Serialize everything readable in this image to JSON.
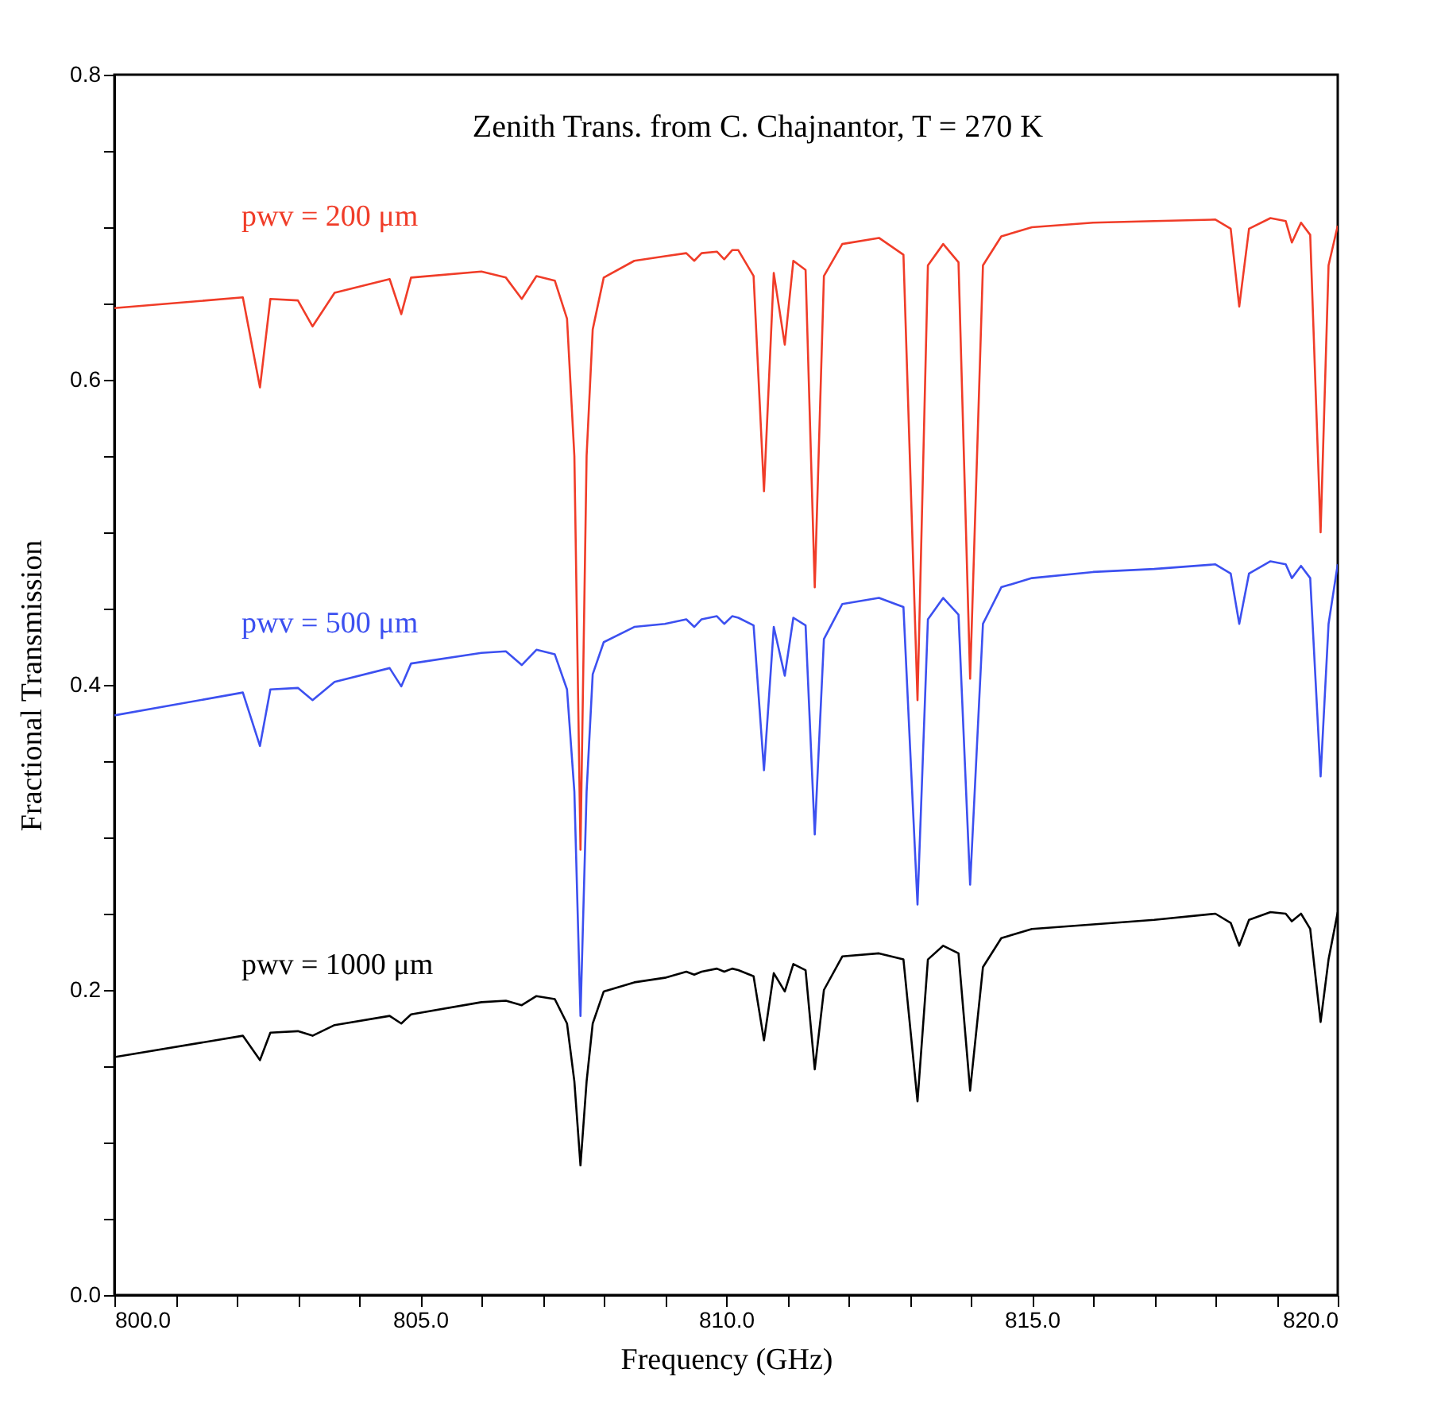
{
  "chart_data": {
    "type": "line",
    "title": "Zenith Trans. from C. Chajnantor, T = 270 K",
    "xlabel": "Frequency (GHz)",
    "ylabel": "Fractional Transmission",
    "x": [
      800,
      802.1,
      802.38,
      802.55,
      803.0,
      803.24,
      803.6,
      804.5,
      804.69,
      804.85,
      806.0,
      806.4,
      806.66,
      806.9,
      807.2,
      807.4,
      807.52,
      807.62,
      807.72,
      807.82,
      808.0,
      808.5,
      809.0,
      809.35,
      809.48,
      809.6,
      809.85,
      809.97,
      810.1,
      810.2,
      810.45,
      810.62,
      810.78,
      810.96,
      811.1,
      811.3,
      811.45,
      811.6,
      811.9,
      812.5,
      812.9,
      813.13,
      813.3,
      813.55,
      813.8,
      813.99,
      814.2,
      814.5,
      815.0,
      816.0,
      817.0,
      818.0,
      818.25,
      818.39,
      818.55,
      818.9,
      819.15,
      819.25,
      819.4,
      819.55,
      819.72,
      819.85,
      820
    ],
    "series": [
      {
        "name": "pwv = 200 μm",
        "color": "#f03c28",
        "values": [
          0.647,
          0.654,
          0.595,
          0.653,
          0.652,
          0.635,
          0.657,
          0.666,
          0.643,
          0.667,
          0.671,
          0.667,
          0.653,
          0.668,
          0.665,
          0.64,
          0.55,
          0.292,
          0.55,
          0.633,
          0.667,
          0.678,
          0.681,
          0.683,
          0.678,
          0.683,
          0.684,
          0.679,
          0.685,
          0.685,
          0.668,
          0.527,
          0.67,
          0.623,
          0.678,
          0.672,
          0.464,
          0.668,
          0.689,
          0.693,
          0.682,
          0.39,
          0.675,
          0.689,
          0.677,
          0.404,
          0.675,
          0.694,
          0.7,
          0.703,
          0.704,
          0.705,
          0.699,
          0.648,
          0.699,
          0.706,
          0.704,
          0.69,
          0.703,
          0.695,
          0.5,
          0.675,
          0.701
        ]
      },
      {
        "name": "pwv = 500 μm",
        "color": "#3c50f0",
        "values": [
          0.38,
          0.395,
          0.36,
          0.397,
          0.398,
          0.39,
          0.402,
          0.411,
          0.399,
          0.414,
          0.421,
          0.422,
          0.413,
          0.423,
          0.42,
          0.397,
          0.33,
          0.183,
          0.33,
          0.407,
          0.428,
          0.438,
          0.44,
          0.443,
          0.438,
          0.443,
          0.445,
          0.44,
          0.445,
          0.444,
          0.439,
          0.344,
          0.438,
          0.406,
          0.444,
          0.439,
          0.302,
          0.43,
          0.453,
          0.457,
          0.451,
          0.256,
          0.443,
          0.457,
          0.446,
          0.269,
          0.44,
          0.464,
          0.47,
          0.474,
          0.476,
          0.479,
          0.473,
          0.44,
          0.473,
          0.481,
          0.479,
          0.47,
          0.478,
          0.47,
          0.34,
          0.44,
          0.479
        ]
      },
      {
        "name": "pwv = 1000 μm",
        "color": "#000000",
        "values": [
          0.156,
          0.17,
          0.154,
          0.172,
          0.173,
          0.17,
          0.177,
          0.183,
          0.178,
          0.184,
          0.192,
          0.193,
          0.19,
          0.196,
          0.194,
          0.178,
          0.14,
          0.085,
          0.14,
          0.178,
          0.199,
          0.205,
          0.208,
          0.212,
          0.21,
          0.212,
          0.214,
          0.212,
          0.214,
          0.213,
          0.209,
          0.167,
          0.211,
          0.199,
          0.217,
          0.213,
          0.148,
          0.2,
          0.222,
          0.224,
          0.22,
          0.127,
          0.22,
          0.229,
          0.224,
          0.134,
          0.215,
          0.234,
          0.24,
          0.243,
          0.246,
          0.25,
          0.244,
          0.229,
          0.246,
          0.251,
          0.25,
          0.245,
          0.25,
          0.24,
          0.179,
          0.22,
          0.251
        ]
      }
    ],
    "xlim": [
      800,
      820
    ],
    "ylim": [
      0,
      0.8
    ],
    "xticks": [
      {
        "value": 800,
        "label": "800.0"
      },
      {
        "value": 801,
        "label": null
      },
      {
        "value": 802,
        "label": null
      },
      {
        "value": 803,
        "label": null
      },
      {
        "value": 804,
        "label": null
      },
      {
        "value": 805,
        "label": "805.0"
      },
      {
        "value": 806,
        "label": null
      },
      {
        "value": 807,
        "label": null
      },
      {
        "value": 808,
        "label": null
      },
      {
        "value": 809,
        "label": null
      },
      {
        "value": 810,
        "label": "810.0"
      },
      {
        "value": 811,
        "label": null
      },
      {
        "value": 812,
        "label": null
      },
      {
        "value": 813,
        "label": null
      },
      {
        "value": 814,
        "label": null
      },
      {
        "value": 815,
        "label": "815.0"
      },
      {
        "value": 816,
        "label": null
      },
      {
        "value": 817,
        "label": null
      },
      {
        "value": 818,
        "label": null
      },
      {
        "value": 819,
        "label": null
      },
      {
        "value": 820,
        "label": "820.0"
      }
    ],
    "yticks": [
      {
        "value": 0,
        "label": "0.0"
      },
      {
        "value": 0.05,
        "label": null
      },
      {
        "value": 0.1,
        "label": null
      },
      {
        "value": 0.15,
        "label": null
      },
      0.2,
      {
        "value": 0.25,
        "label": null
      },
      {
        "value": 0.3,
        "label": null
      },
      {
        "value": 0.35,
        "label": null
      },
      0.4,
      {
        "value": 0.45,
        "label": null
      },
      {
        "value": 0.5,
        "label": null
      },
      {
        "value": 0.55,
        "label": null
      },
      0.6,
      {
        "value": 0.65,
        "label": null
      },
      {
        "value": 0.7,
        "label": null
      },
      {
        "value": 0.75,
        "label": null
      },
      0.8
    ],
    "grid": false,
    "marker": "none",
    "line_style": "solid"
  }
}
